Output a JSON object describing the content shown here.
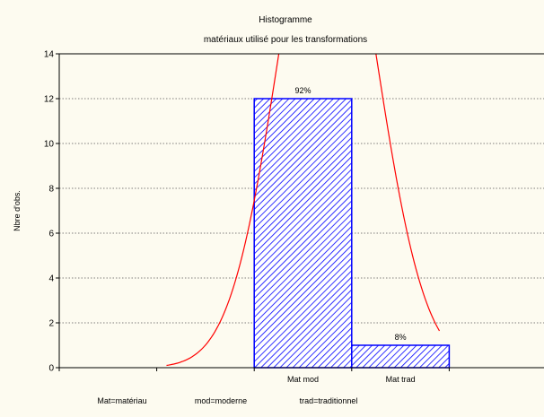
{
  "chart_data": {
    "type": "bar",
    "title": "Histogramme",
    "subtitle": "matériaux utilisé pour les transformations",
    "xlabel": "",
    "ylabel": "Nbre d'obs.",
    "ylim": [
      0,
      14
    ],
    "yticks": [
      "0",
      "2",
      "4",
      "6",
      "8",
      "10",
      "12",
      "14"
    ],
    "grid": "horizontal dotted",
    "categories": [
      "Mat mod",
      "Mat trad"
    ],
    "values": [
      12,
      1
    ],
    "value_labels": [
      "92%",
      "8%"
    ],
    "bar_fill": "#0000ff",
    "curve_color": "#ff0000",
    "legend_note": [
      "Mat=matériau",
      "mod=moderne",
      "trad=traditionnel"
    ]
  }
}
